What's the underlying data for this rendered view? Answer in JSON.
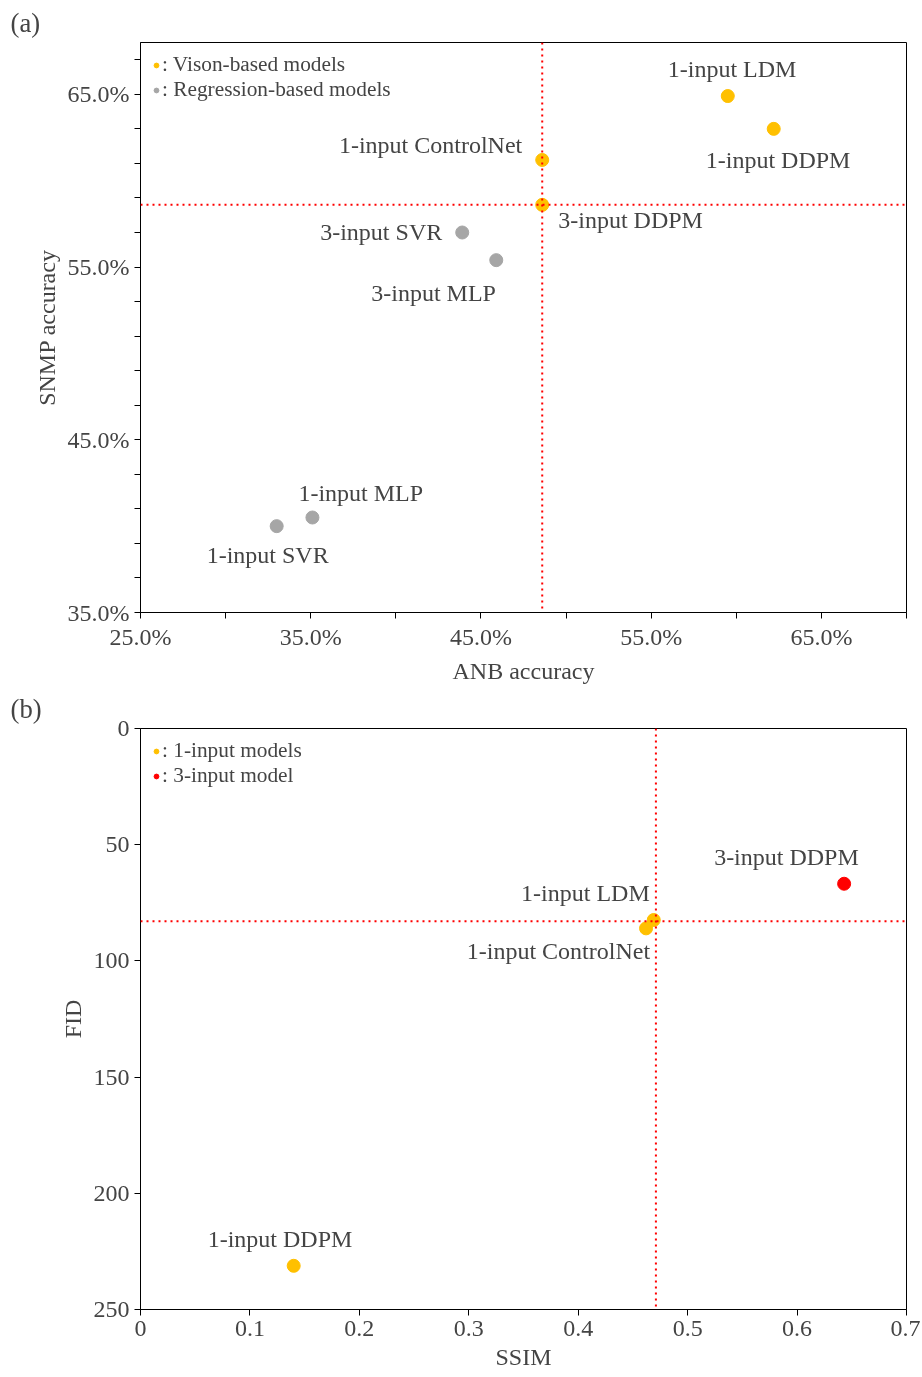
{
  "chart_data": [
    {
      "type": "scatter",
      "title": "(a)",
      "xlabel": "ANB accuracy",
      "ylabel": "SNMP accuracy",
      "xlim": [
        25,
        70
      ],
      "ylim": [
        35,
        68
      ],
      "xticks": [
        {
          "value": 25,
          "label": "25.0%"
        },
        {
          "value": 30,
          "label": null
        },
        {
          "value": 35,
          "label": "35.0%"
        },
        {
          "value": 40,
          "label": null
        },
        {
          "value": 45,
          "label": "45.0%"
        },
        {
          "value": 50,
          "label": null
        },
        {
          "value": 55,
          "label": "55.0%"
        },
        {
          "value": 60,
          "label": null
        },
        {
          "value": 65,
          "label": "65.0%"
        },
        {
          "value": 70,
          "label": null
        }
      ],
      "yticks": [
        {
          "value": 35,
          "label": "35.0%"
        },
        {
          "value": 37,
          "label": null
        },
        {
          "value": 39,
          "label": null
        },
        {
          "value": 41,
          "label": null
        },
        {
          "value": 43,
          "label": null
        },
        {
          "value": 45,
          "label": "45.0%"
        },
        {
          "value": 47,
          "label": null
        },
        {
          "value": 49,
          "label": null
        },
        {
          "value": 51,
          "label": null
        },
        {
          "value": 53,
          "label": null
        },
        {
          "value": 55,
          "label": "55.0%"
        },
        {
          "value": 57,
          "label": null
        },
        {
          "value": 59,
          "label": null
        },
        {
          "value": 61,
          "label": null
        },
        {
          "value": 63,
          "label": null
        },
        {
          "value": 65,
          "label": "65.0%"
        },
        {
          "value": 67,
          "label": null
        }
      ],
      "grid": false,
      "legend": "top left",
      "marker": "circle",
      "series": [
        {
          "name": ": Vison-based models",
          "color": "#ffc000",
          "x": [
            59.5,
            62.2,
            48.6,
            48.6
          ],
          "values": [
            64.9,
            63.0,
            61.2,
            58.6
          ]
        },
        {
          "name": ": Regression-based models",
          "color": "#a6a6a6",
          "x": [
            43.9,
            45.9,
            35.1,
            33.0
          ],
          "values": [
            57.0,
            55.4,
            40.5,
            40.0
          ]
        }
      ],
      "ref_lines": [
        {
          "axis": "x",
          "value": 48.6,
          "color": "#ff0000",
          "line_style": "dotted"
        },
        {
          "axis": "y",
          "value": 58.6,
          "color": "#ff0000",
          "line_style": "dotted"
        }
      ],
      "annotations": [
        {
          "text": "1-input LDM",
          "x": 59.5,
          "y": 64.9
        },
        {
          "text": "1-input DDPM",
          "x": 62.2,
          "y": 63.0
        },
        {
          "text": "1-input ControlNet",
          "x": 48.6,
          "y": 61.2
        },
        {
          "text": "3-input DDPM",
          "x": 48.6,
          "y": 58.6
        },
        {
          "text": "3-input SVR",
          "x": 43.9,
          "y": 57.0
        },
        {
          "text": "3-input MLP",
          "x": 45.9,
          "y": 55.4
        },
        {
          "text": "1-input MLP",
          "x": 35.1,
          "y": 40.5
        },
        {
          "text": "1-input SVR",
          "x": 33.0,
          "y": 40.0
        }
      ]
    },
    {
      "type": "scatter",
      "title": "(b)",
      "xlabel": "SSIM",
      "ylabel": "FID",
      "xlim": [
        0,
        0.7
      ],
      "ylim": [
        250,
        0
      ],
      "xticks": [
        0,
        0.1,
        0.2,
        0.3,
        0.4,
        0.5,
        0.6,
        0.7
      ],
      "yticks": [
        0,
        50,
        100,
        150,
        200,
        250
      ],
      "grid": false,
      "legend": "top left",
      "marker": "circle",
      "series": [
        {
          "name": ": 1-input models",
          "color": "#ffc000",
          "x": [
            0.469,
            0.462,
            0.14
          ],
          "values": [
            82.4,
            86.0,
            231.2
          ]
        },
        {
          "name": ": 3-input model",
          "color": "#ff0000",
          "x": [
            0.643
          ],
          "values": [
            66.8
          ]
        }
      ],
      "ref_lines": [
        {
          "axis": "x",
          "value": 0.471,
          "color": "#ff0000",
          "line_style": "dotted"
        },
        {
          "axis": "y",
          "value": 82.9,
          "color": "#ff0000",
          "line_style": "dotted"
        }
      ],
      "annotations": [
        {
          "text": "3-input DDPM",
          "x": 0.643,
          "y": 66.8
        },
        {
          "text": "1-input LDM",
          "x": 0.469,
          "y": 82.4
        },
        {
          "text": "1-input ControlNet",
          "x": 0.462,
          "y": 86.0
        },
        {
          "text": "1-input DDPM",
          "x": 0.14,
          "y": 231.2
        }
      ]
    }
  ]
}
